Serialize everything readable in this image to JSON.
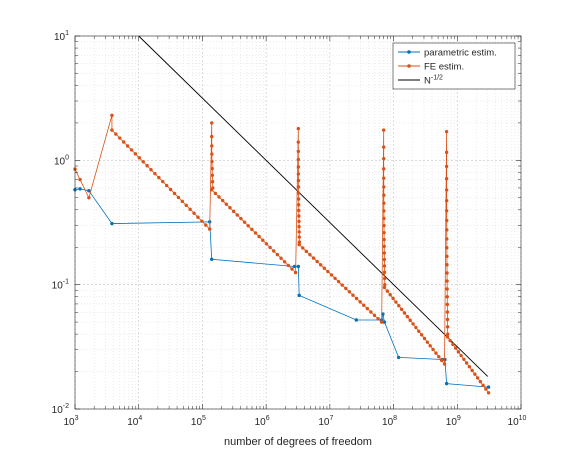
{
  "chart_data": {
    "type": "line",
    "title": "",
    "xlabel": "number of degrees of freedom",
    "ylabel": "",
    "x_scale": "log",
    "y_scale": "log",
    "xlim": [
      1000,
      10000000000
    ],
    "ylim": [
      0.01,
      10
    ],
    "grid": true,
    "minor_grid": true,
    "legend_position": "top-right",
    "x_ticks": [
      {
        "value": 1000,
        "base": "10",
        "exp": "3"
      },
      {
        "value": 10000,
        "base": "10",
        "exp": "4"
      },
      {
        "value": 100000,
        "base": "10",
        "exp": "5"
      },
      {
        "value": 1000000,
        "base": "10",
        "exp": "6"
      },
      {
        "value": 10000000,
        "base": "10",
        "exp": "7"
      },
      {
        "value": 100000000,
        "base": "10",
        "exp": "8"
      },
      {
        "value": 1000000000,
        "base": "10",
        "exp": "9"
      },
      {
        "value": 10000000000,
        "base": "10",
        "exp": "10"
      }
    ],
    "y_ticks": [
      {
        "value": 0.01,
        "base": "10",
        "exp": "-2"
      },
      {
        "value": 0.1,
        "base": "10",
        "exp": "-1"
      },
      {
        "value": 1,
        "base": "10",
        "exp": "0"
      },
      {
        "value": 10,
        "base": "10",
        "exp": "1"
      }
    ],
    "series": [
      {
        "name": "parametric estim.",
        "color": "#0072BD",
        "marker": "dot",
        "x": [
          1000,
          1200,
          1650,
          3800,
          130000,
          140000,
          2800000,
          3200000,
          3300000,
          26000000,
          65000000,
          68000000,
          72000000,
          120000000,
          580000000,
          640000000,
          680000000,
          3100000000
        ],
        "y": [
          0.58,
          0.59,
          0.57,
          0.31,
          0.32,
          0.16,
          0.14,
          0.14,
          0.082,
          0.052,
          0.052,
          0.058,
          0.05,
          0.026,
          0.025,
          0.025,
          0.016,
          0.015
        ]
      },
      {
        "name": "FE estim.",
        "color": "#D95319",
        "marker": "dot",
        "segments": [
          {
            "type": "points",
            "x": [
              1000,
              1200,
              1650,
              3800
            ],
            "y": [
              0.85,
              0.7,
              0.5,
              2.3
            ]
          },
          {
            "type": "decay",
            "x_start": 3800,
            "x_end": 130000,
            "y_start": 1.75,
            "y_end": 0.28,
            "count": 26
          },
          {
            "type": "spike",
            "x": 140000,
            "y_top": 2.0,
            "y_bottom": 0.6,
            "count": 9
          },
          {
            "type": "decay",
            "x_start": 140000,
            "x_end": 2900000,
            "y_start": 0.58,
            "y_end": 0.125,
            "count": 24
          },
          {
            "type": "spike",
            "x": 3200000,
            "y_top": 1.8,
            "y_bottom": 0.22,
            "count": 18
          },
          {
            "type": "decay",
            "x_start": 3300000,
            "x_end": 65000000,
            "y_start": 0.21,
            "y_end": 0.05,
            "count": 24
          },
          {
            "type": "spike",
            "x": 70000000,
            "y_top": 1.75,
            "y_bottom": 0.1,
            "count": 20
          },
          {
            "type": "decay",
            "x_start": 72000000,
            "x_end": 630000000,
            "y_start": 0.095,
            "y_end": 0.023,
            "count": 22
          },
          {
            "type": "spike",
            "x": 680000000,
            "y_top": 1.7,
            "y_bottom": 0.04,
            "count": 22
          },
          {
            "type": "decay",
            "x_start": 700000000,
            "x_end": 3100000000,
            "y_start": 0.038,
            "y_end": 0.0135,
            "count": 16
          }
        ]
      },
      {
        "name": "N^{-1/2}",
        "legend_base": "N",
        "legend_sup": "-1/2",
        "color": "#000000",
        "marker": "none",
        "x": [
          10000,
          3000000000
        ],
        "y": [
          10,
          0.01826
        ]
      }
    ]
  }
}
